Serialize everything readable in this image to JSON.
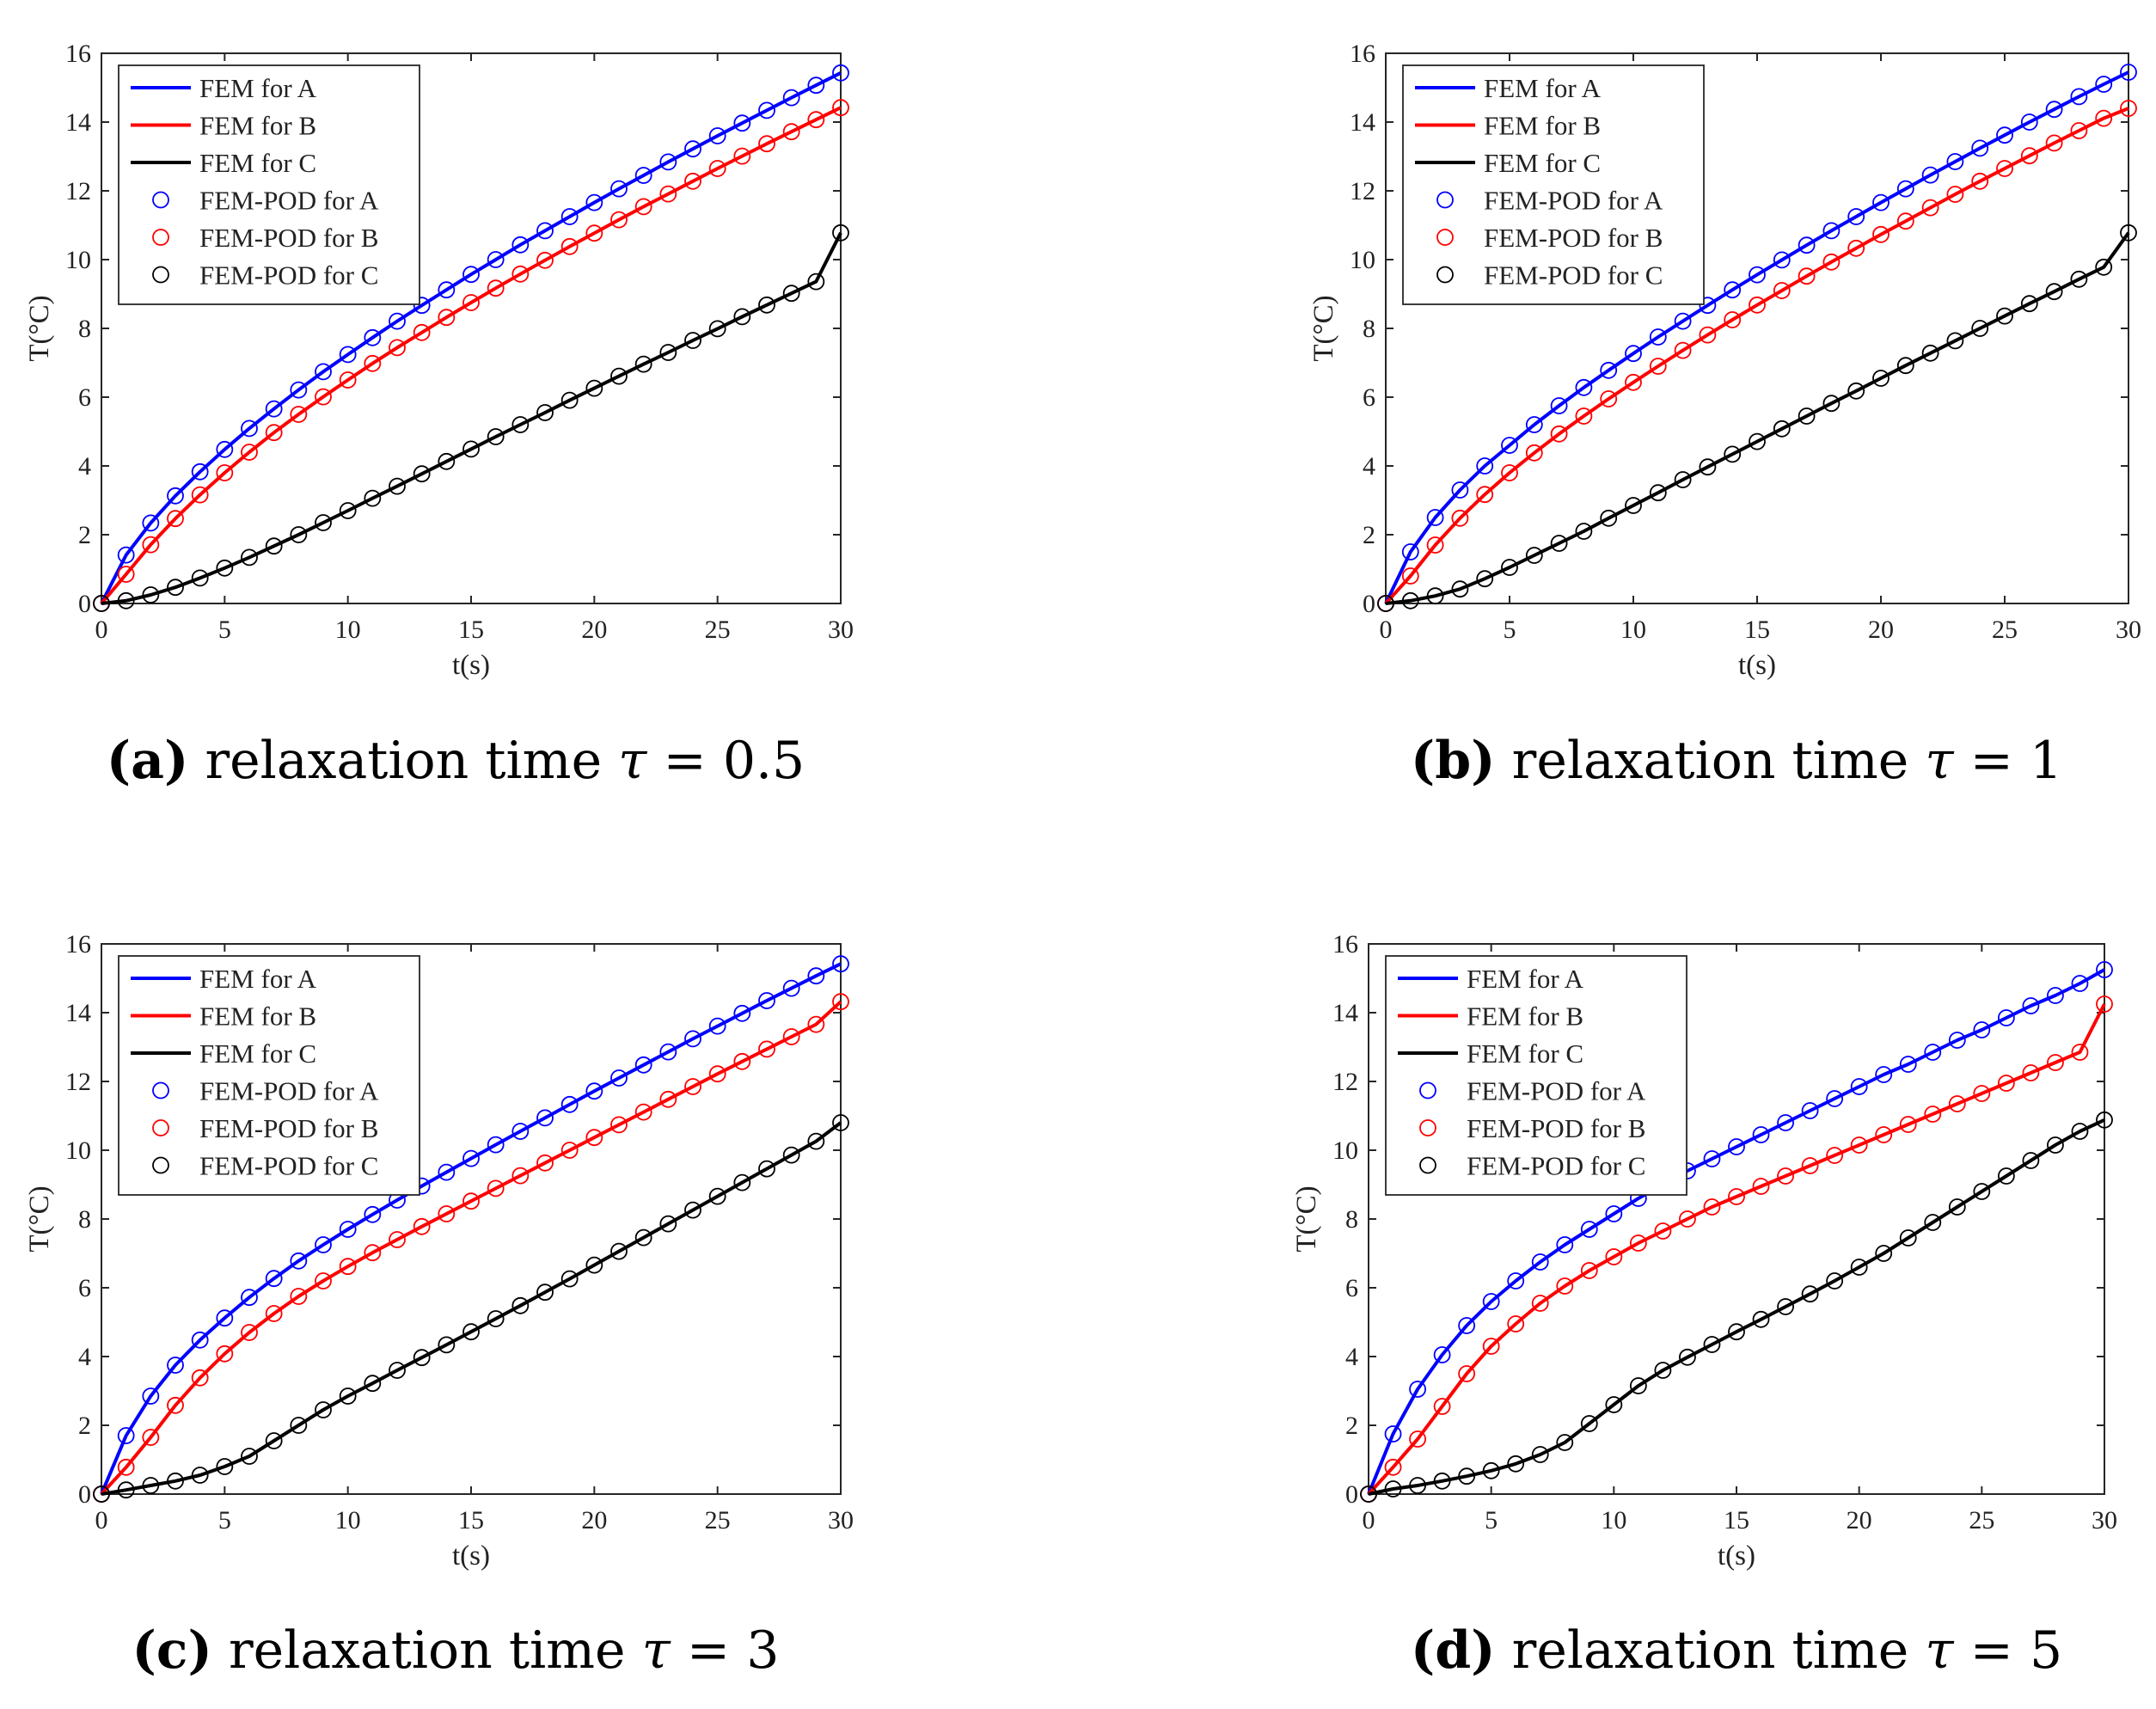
{
  "chart_data": [
    {
      "type": "line",
      "panel_tag": "(a)",
      "caption": "relaxation time",
      "tau_symbol": "τ",
      "caption_eq": "=",
      "tau": "0.5",
      "xlabel": "t(s)",
      "ylabel": "T(°C)",
      "xlim": [
        0,
        30
      ],
      "ylim": [
        0,
        16
      ],
      "xticks": [
        "0",
        "5",
        "10",
        "15",
        "20",
        "25",
        "30"
      ],
      "yticks": [
        "0",
        "2",
        "4",
        "6",
        "8",
        "10",
        "12",
        "14",
        "16"
      ],
      "x": [
        0,
        1,
        2,
        3,
        4,
        5,
        6,
        7,
        8,
        9,
        10,
        11,
        12,
        13,
        14,
        15,
        16,
        17,
        18,
        19,
        20,
        21,
        22,
        23,
        24,
        25,
        26,
        27,
        28,
        29,
        30
      ],
      "series": [
        {
          "name": "FEM for A",
          "values": [
            0,
            1.41,
            2.34,
            3.13,
            3.83,
            4.48,
            5.09,
            5.66,
            6.21,
            6.74,
            7.24,
            7.73,
            8.21,
            8.67,
            9.12,
            9.57,
            10.0,
            10.43,
            10.84,
            11.25,
            11.66,
            12.06,
            12.45,
            12.84,
            13.22,
            13.6,
            13.97,
            14.34,
            14.71,
            15.07,
            15.43
          ]
        },
        {
          "name": "FEM for B",
          "values": [
            0,
            0.85,
            1.71,
            2.47,
            3.16,
            3.8,
            4.4,
            4.97,
            5.5,
            6.01,
            6.5,
            6.98,
            7.44,
            7.88,
            8.32,
            8.75,
            9.17,
            9.58,
            9.98,
            10.38,
            10.77,
            11.16,
            11.54,
            11.91,
            12.28,
            12.65,
            13.01,
            13.37,
            13.72,
            14.07,
            14.42
          ]
        },
        {
          "name": "FEM for C",
          "values": [
            0,
            0.08,
            0.25,
            0.47,
            0.74,
            1.03,
            1.34,
            1.67,
            2.0,
            2.35,
            2.7,
            3.06,
            3.41,
            3.77,
            4.13,
            4.49,
            4.85,
            5.2,
            5.55,
            5.91,
            6.26,
            6.61,
            6.96,
            7.3,
            7.65,
            7.99,
            8.34,
            8.68,
            9.02,
            9.36,
            10.78
          ]
        }
      ],
      "legend": [
        "FEM for A",
        "FEM for B",
        "FEM for C",
        "FEM-POD for A",
        "FEM-POD for B",
        "FEM-POD for C"
      ],
      "legend_location": "top-left",
      "colors": {
        "A": "#0000ff",
        "B": "#ff0000",
        "C": "#000000"
      }
    },
    {
      "type": "line",
      "panel_tag": "(b)",
      "caption": "relaxation time",
      "tau_symbol": "τ",
      "caption_eq": "=",
      "tau": "1",
      "xlabel": "t(s)",
      "ylabel": "T(°C)",
      "xlim": [
        0,
        30
      ],
      "ylim": [
        0,
        16
      ],
      "xticks": [
        "0",
        "5",
        "10",
        "15",
        "20",
        "25",
        "30"
      ],
      "yticks": [
        "0",
        "2",
        "4",
        "6",
        "8",
        "10",
        "12",
        "14",
        "16"
      ],
      "x": [
        0,
        1,
        2,
        3,
        4,
        5,
        6,
        7,
        8,
        9,
        10,
        11,
        12,
        13,
        14,
        15,
        16,
        17,
        18,
        19,
        20,
        21,
        22,
        23,
        24,
        25,
        26,
        27,
        28,
        29,
        30
      ],
      "series": [
        {
          "name": "FEM for A",
          "values": [
            0,
            1.5,
            2.5,
            3.3,
            4.0,
            4.6,
            5.2,
            5.75,
            6.28,
            6.78,
            7.27,
            7.75,
            8.21,
            8.67,
            9.12,
            9.56,
            9.99,
            10.42,
            10.84,
            11.25,
            11.66,
            12.06,
            12.46,
            12.85,
            13.24,
            13.62,
            14.0,
            14.37,
            14.74,
            15.1,
            15.45
          ]
        },
        {
          "name": "FEM for B",
          "values": [
            0,
            0.8,
            1.7,
            2.48,
            3.17,
            3.8,
            4.38,
            4.93,
            5.45,
            5.95,
            6.43,
            6.9,
            7.36,
            7.81,
            8.25,
            8.68,
            9.1,
            9.52,
            9.93,
            10.33,
            10.73,
            11.12,
            11.51,
            11.9,
            12.28,
            12.65,
            13.02,
            13.39,
            13.75,
            14.11,
            14.4
          ]
        },
        {
          "name": "FEM for C",
          "values": [
            0,
            0.08,
            0.22,
            0.42,
            0.72,
            1.05,
            1.4,
            1.75,
            2.1,
            2.48,
            2.85,
            3.22,
            3.6,
            3.97,
            4.34,
            4.71,
            5.08,
            5.45,
            5.82,
            6.18,
            6.55,
            6.92,
            7.28,
            7.64,
            8.0,
            8.36,
            8.72,
            9.07,
            9.43,
            9.78,
            10.78
          ]
        }
      ],
      "legend": [
        "FEM for A",
        "FEM for B",
        "FEM for C",
        "FEM-POD for A",
        "FEM-POD for B",
        "FEM-POD for C"
      ],
      "legend_location": "top-left",
      "colors": {
        "A": "#0000ff",
        "B": "#ff0000",
        "C": "#000000"
      }
    },
    {
      "type": "line",
      "panel_tag": "(c)",
      "caption": "relaxation time",
      "tau_symbol": "τ",
      "caption_eq": "=",
      "tau": "3",
      "xlabel": "t(s)",
      "ylabel": "T(°C)",
      "xlim": [
        0,
        30
      ],
      "ylim": [
        0,
        16
      ],
      "xticks": [
        "0",
        "5",
        "10",
        "15",
        "20",
        "25",
        "30"
      ],
      "yticks": [
        "0",
        "2",
        "4",
        "6",
        "8",
        "10",
        "12",
        "14",
        "16"
      ],
      "x": [
        0,
        1,
        2,
        3,
        4,
        5,
        6,
        7,
        8,
        9,
        10,
        11,
        12,
        13,
        14,
        15,
        16,
        17,
        18,
        19,
        20,
        21,
        22,
        23,
        24,
        25,
        26,
        27,
        28,
        29,
        30
      ],
      "series": [
        {
          "name": "FEM for A",
          "values": [
            0,
            1.7,
            2.85,
            3.75,
            4.48,
            5.12,
            5.72,
            6.27,
            6.78,
            7.25,
            7.7,
            8.13,
            8.55,
            8.96,
            9.36,
            9.76,
            10.16,
            10.55,
            10.94,
            11.33,
            11.72,
            12.1,
            12.48,
            12.86,
            13.24,
            13.61,
            13.98,
            14.35,
            14.71,
            15.07,
            15.42
          ]
        },
        {
          "name": "FEM for B",
          "values": [
            0,
            0.78,
            1.65,
            2.58,
            3.38,
            4.08,
            4.7,
            5.25,
            5.75,
            6.2,
            6.62,
            7.02,
            7.4,
            7.78,
            8.15,
            8.52,
            8.89,
            9.26,
            9.63,
            10.0,
            10.37,
            10.74,
            11.11,
            11.48,
            11.85,
            12.22,
            12.58,
            12.94,
            13.3,
            13.66,
            14.32
          ]
        },
        {
          "name": "FEM for C",
          "values": [
            0,
            0.12,
            0.25,
            0.38,
            0.55,
            0.8,
            1.1,
            1.55,
            2.0,
            2.45,
            2.85,
            3.22,
            3.6,
            3.97,
            4.34,
            4.72,
            5.1,
            5.48,
            5.87,
            6.26,
            6.66,
            7.06,
            7.46,
            7.86,
            8.26,
            8.66,
            9.06,
            9.46,
            9.86,
            10.26,
            10.8
          ]
        }
      ],
      "legend": [
        "FEM for A",
        "FEM for B",
        "FEM for C",
        "FEM-POD for A",
        "FEM-POD for B",
        "FEM-POD for C"
      ],
      "legend_location": "top-left",
      "colors": {
        "A": "#0000ff",
        "B": "#ff0000",
        "C": "#000000"
      }
    },
    {
      "type": "line",
      "panel_tag": "(d)",
      "caption": "relaxation time",
      "tau_symbol": "τ",
      "caption_eq": "=",
      "tau": "5",
      "xlabel": "t(s)",
      "ylabel": "T(°C)",
      "xlim": [
        0,
        30
      ],
      "ylim": [
        0,
        16
      ],
      "xticks": [
        "0",
        "5",
        "10",
        "15",
        "20",
        "25",
        "30"
      ],
      "yticks": [
        "0",
        "2",
        "4",
        "6",
        "8",
        "10",
        "12",
        "14",
        "16"
      ],
      "x": [
        0,
        1,
        2,
        3,
        4,
        5,
        6,
        7,
        8,
        9,
        10,
        11,
        12,
        13,
        14,
        15,
        16,
        17,
        18,
        19,
        20,
        21,
        22,
        23,
        24,
        25,
        26,
        27,
        28,
        29,
        30
      ],
      "series": [
        {
          "name": "FEM for A",
          "values": [
            0,
            1.75,
            3.05,
            4.05,
            4.9,
            5.6,
            6.2,
            6.75,
            7.25,
            7.7,
            8.15,
            8.6,
            9.0,
            9.4,
            9.75,
            10.1,
            10.45,
            10.8,
            11.15,
            11.5,
            11.85,
            12.2,
            12.5,
            12.85,
            13.2,
            13.5,
            13.85,
            14.2,
            14.5,
            14.85,
            15.25
          ]
        },
        {
          "name": "FEM for B",
          "values": [
            0,
            0.78,
            1.6,
            2.55,
            3.5,
            4.3,
            4.95,
            5.55,
            6.05,
            6.5,
            6.9,
            7.3,
            7.65,
            8.0,
            8.35,
            8.65,
            8.95,
            9.25,
            9.55,
            9.85,
            10.15,
            10.45,
            10.75,
            11.05,
            11.35,
            11.65,
            11.95,
            12.25,
            12.55,
            12.85,
            14.25
          ]
        },
        {
          "name": "FEM for C",
          "values": [
            0,
            0.15,
            0.25,
            0.38,
            0.52,
            0.68,
            0.88,
            1.15,
            1.5,
            2.05,
            2.6,
            3.15,
            3.6,
            3.98,
            4.35,
            4.72,
            5.08,
            5.45,
            5.82,
            6.2,
            6.6,
            7.0,
            7.45,
            7.9,
            8.35,
            8.8,
            9.25,
            9.7,
            10.15,
            10.55,
            10.88
          ]
        }
      ],
      "legend": [
        "FEM for A",
        "FEM for B",
        "FEM for C",
        "FEM-POD for A",
        "FEM-POD for B",
        "FEM-POD for C"
      ],
      "legend_location": "top-left",
      "colors": {
        "A": "#0000ff",
        "B": "#ff0000",
        "C": "#000000"
      }
    }
  ]
}
